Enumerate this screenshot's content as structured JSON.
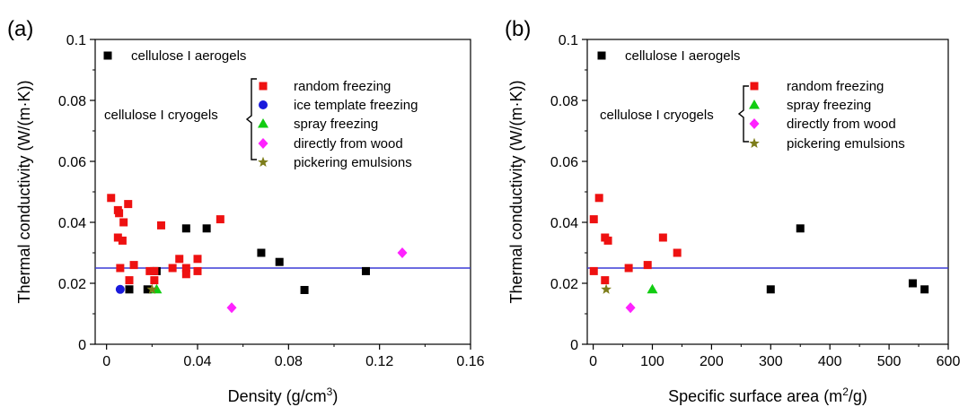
{
  "chart_data": [
    {
      "type": "scatter",
      "panel_label": "(a)",
      "xlabel": "Density (g/cm",
      "xlabel_sup": "3",
      "xlabel_end": ")",
      "ylabel": "Thermal conductivity (W/(m·K))",
      "xlim": [
        -0.005,
        0.16
      ],
      "ylim": [
        0,
        0.1
      ],
      "xticks": [
        0,
        0.04,
        0.08,
        0.12,
        0.16
      ],
      "xtick_labels": [
        "0",
        "0.04",
        "0.08",
        "0.12",
        "0.16"
      ],
      "yticks": [
        0,
        0.02,
        0.04,
        0.06,
        0.08,
        0.1
      ],
      "ytick_labels": [
        "0",
        "0.02",
        "0.04",
        "0.06",
        "0.08",
        "0.1"
      ],
      "reference_line_y": 0.025,
      "reference_line_color": "#3a3ad6",
      "group_label": "cellulose I cryogels",
      "series": [
        {
          "name": "cellulose I aerogels",
          "marker": "square",
          "color": "#000000",
          "points": [
            [
              0.01,
              0.018
            ],
            [
              0.018,
              0.018
            ],
            [
              0.022,
              0.024
            ],
            [
              0.035,
              0.038
            ],
            [
              0.044,
              0.038
            ],
            [
              0.068,
              0.03
            ],
            [
              0.076,
              0.027
            ],
            [
              0.087,
              0.0178
            ],
            [
              0.114,
              0.024
            ]
          ]
        },
        {
          "name": "random freezing",
          "marker": "square",
          "color": "#ee1111",
          "points": [
            [
              0.002,
              0.048
            ],
            [
              0.005,
              0.044
            ],
            [
              0.0055,
              0.043
            ],
            [
              0.0075,
              0.04
            ],
            [
              0.0095,
              0.046
            ],
            [
              0.005,
              0.035
            ],
            [
              0.007,
              0.034
            ],
            [
              0.006,
              0.025
            ],
            [
              0.012,
              0.026
            ],
            [
              0.01,
              0.021
            ],
            [
              0.019,
              0.024
            ],
            [
              0.021,
              0.024
            ],
            [
              0.021,
              0.021
            ],
            [
              0.024,
              0.039
            ],
            [
              0.029,
              0.025
            ],
            [
              0.032,
              0.028
            ],
            [
              0.035,
              0.025
            ],
            [
              0.035,
              0.023
            ],
            [
              0.04,
              0.028
            ],
            [
              0.04,
              0.024
            ],
            [
              0.05,
              0.041
            ]
          ]
        },
        {
          "name": "ice template freezing",
          "marker": "circle",
          "color": "#1a1adc",
          "points": [
            [
              0.006,
              0.018
            ]
          ]
        },
        {
          "name": "spray freezing",
          "marker": "triangle",
          "color": "#11cc11",
          "points": [
            [
              0.022,
              0.018
            ]
          ]
        },
        {
          "name": "directly from wood",
          "marker": "diamond",
          "color": "#ff22ff",
          "points": [
            [
              0.055,
              0.012
            ],
            [
              0.13,
              0.03
            ]
          ]
        },
        {
          "name": "pickering emulsions",
          "marker": "star",
          "color": "#7d7d1a",
          "points": [
            [
              0.02,
              0.018
            ]
          ]
        }
      ]
    },
    {
      "type": "scatter",
      "panel_label": "(b)",
      "xlabel": "Specific surface area (m",
      "xlabel_sup": "2",
      "xlabel_end": "/g)",
      "ylabel": "Thermal conductivity (W/(m·K))",
      "xlim": [
        -10,
        600
      ],
      "ylim": [
        0,
        0.1
      ],
      "xticks": [
        0,
        100,
        200,
        300,
        400,
        500,
        600
      ],
      "xtick_labels": [
        "0",
        "100",
        "200",
        "300",
        "400",
        "500",
        "600"
      ],
      "yticks": [
        0,
        0.02,
        0.04,
        0.06,
        0.08,
        0.1
      ],
      "ytick_labels": [
        "0",
        "0.02",
        "0.04",
        "0.06",
        "0.08",
        "0.1"
      ],
      "reference_line_y": 0.025,
      "reference_line_color": "#3a3ad6",
      "group_label": "cellulose I cryogels",
      "series": [
        {
          "name": "cellulose I aerogels",
          "marker": "square",
          "color": "#000000",
          "points": [
            [
              300,
              0.018
            ],
            [
              350,
              0.038
            ],
            [
              540,
              0.02
            ],
            [
              560,
              0.018
            ]
          ]
        },
        {
          "name": "random freezing",
          "marker": "square",
          "color": "#ee1111",
          "points": [
            [
              1,
              0.041
            ],
            [
              10,
              0.048
            ],
            [
              20,
              0.035
            ],
            [
              25,
              0.034
            ],
            [
              1,
              0.024
            ],
            [
              20,
              0.021
            ],
            [
              60,
              0.025
            ],
            [
              92,
              0.026
            ],
            [
              118,
              0.035
            ],
            [
              142,
              0.03
            ]
          ]
        },
        {
          "name": "spray freezing",
          "marker": "triangle",
          "color": "#11cc11",
          "points": [
            [
              100,
              0.018
            ]
          ]
        },
        {
          "name": "directly from wood",
          "marker": "diamond",
          "color": "#ff22ff",
          "points": [
            [
              63,
              0.012
            ]
          ]
        },
        {
          "name": "pickering emulsions",
          "marker": "star",
          "color": "#7d7d1a",
          "points": [
            [
              22,
              0.018
            ]
          ]
        }
      ]
    }
  ]
}
